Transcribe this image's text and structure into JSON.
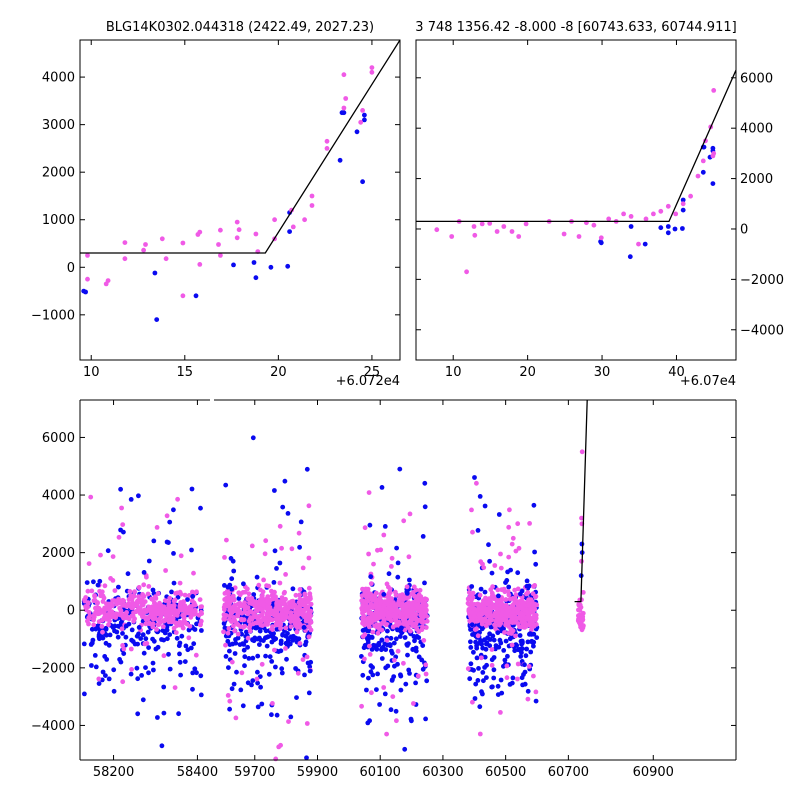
{
  "chart_data": [
    {
      "type": "scatter",
      "title": "BLG14K0302.044318 (2422.49, 2027.23)",
      "x_offset_label": "+6.072e4",
      "xlim": [
        9.4,
        26.5
      ],
      "ylim": [
        -1950,
        4780
      ],
      "xticks": [
        10,
        15,
        20,
        25
      ],
      "yticks": [
        -1000,
        0,
        1000,
        2000,
        3000,
        4000
      ],
      "y_axis_side": "left",
      "colors": {
        "series_a": "#0a0af0",
        "series_b": "#f05ae6",
        "model": "#000000"
      },
      "model_line": [
        [
          9.4,
          300
        ],
        [
          19.3,
          300
        ],
        [
          26.5,
          4780
        ]
      ],
      "series": [
        {
          "key": "series_a",
          "points": [
            [
              9.6,
              -500
            ],
            [
              9.7,
              -520
            ],
            [
              13.5,
              -1100
            ],
            [
              13.4,
              -120
            ],
            [
              15.6,
              -600
            ],
            [
              17.6,
              50
            ],
            [
              18.7,
              100
            ],
            [
              18.8,
              -220
            ],
            [
              19.6,
              0
            ],
            [
              20.5,
              20
            ],
            [
              20.6,
              1150
            ],
            [
              20.6,
              750
            ],
            [
              23.3,
              2250
            ],
            [
              23.4,
              3250
            ],
            [
              23.5,
              3250
            ],
            [
              24.2,
              2850
            ],
            [
              24.5,
              1800
            ],
            [
              24.6,
              3100
            ],
            [
              24.6,
              3200
            ]
          ]
        },
        {
          "key": "series_b",
          "points": [
            [
              9.8,
              250
            ],
            [
              9.8,
              -250
            ],
            [
              10.8,
              -350
            ],
            [
              10.9,
              -280
            ],
            [
              11.8,
              520
            ],
            [
              11.8,
              180
            ],
            [
              12.8,
              360
            ],
            [
              12.9,
              480
            ],
            [
              13.8,
              600
            ],
            [
              14.0,
              180
            ],
            [
              14.9,
              -600
            ],
            [
              14.9,
              510
            ],
            [
              15.7,
              690
            ],
            [
              15.8,
              740
            ],
            [
              15.8,
              60
            ],
            [
              16.8,
              480
            ],
            [
              16.9,
              250
            ],
            [
              16.9,
              780
            ],
            [
              17.8,
              950
            ],
            [
              17.8,
              620
            ],
            [
              17.9,
              790
            ],
            [
              18.8,
              700
            ],
            [
              18.9,
              330
            ],
            [
              19.8,
              600
            ],
            [
              19.8,
              1000
            ],
            [
              20.7,
              1200
            ],
            [
              20.8,
              850
            ],
            [
              21.4,
              1000
            ],
            [
              21.8,
              1300
            ],
            [
              21.8,
              1500
            ],
            [
              22.6,
              2500
            ],
            [
              22.6,
              2650
            ],
            [
              23.5,
              3350
            ],
            [
              23.5,
              4050
            ],
            [
              23.6,
              3550
            ],
            [
              24.4,
              3050
            ],
            [
              24.5,
              3300
            ],
            [
              25.0,
              4100
            ],
            [
              25.0,
              4200
            ]
          ]
        }
      ]
    },
    {
      "type": "scatter",
      "title": "3 748 1356.42 -8.000 -8 [60743.633, 60744.911]",
      "x_offset_label": "+6.07e4",
      "xlim": [
        5,
        48
      ],
      "ylim": [
        -5200,
        7500
      ],
      "xticks": [
        10,
        20,
        30,
        40
      ],
      "yticks": [
        -4000,
        -2000,
        0,
        2000,
        4000,
        6000
      ],
      "y_axis_side": "right",
      "model_line": [
        [
          5,
          300
        ],
        [
          39,
          300
        ],
        [
          48,
          6300
        ]
      ],
      "series": [
        {
          "key": "series_a",
          "points": [
            [
              29.8,
              -500
            ],
            [
              29.9,
              -550
            ],
            [
              33.8,
              -1100
            ],
            [
              33.9,
              100
            ],
            [
              35.8,
              -600
            ],
            [
              37.9,
              50
            ],
            [
              38.9,
              100
            ],
            [
              38.9,
              -150
            ],
            [
              39.8,
              0
            ],
            [
              40.8,
              20
            ],
            [
              40.9,
              750
            ],
            [
              40.9,
              1150
            ],
            [
              43.6,
              2250
            ],
            [
              43.6,
              3250
            ],
            [
              43.7,
              3250
            ],
            [
              44.5,
              2850
            ],
            [
              44.9,
              1800
            ],
            [
              44.9,
              3100
            ],
            [
              44.9,
              3200
            ]
          ]
        },
        {
          "key": "series_b",
          "points": [
            [
              7.8,
              -30
            ],
            [
              9.8,
              -300
            ],
            [
              10.8,
              300
            ],
            [
              11.8,
              -1700
            ],
            [
              12.8,
              100
            ],
            [
              12.9,
              -250
            ],
            [
              13.9,
              200
            ],
            [
              14.9,
              220
            ],
            [
              15.9,
              -100
            ],
            [
              16.8,
              100
            ],
            [
              17.9,
              -100
            ],
            [
              18.8,
              -300
            ],
            [
              19.8,
              200
            ],
            [
              22.9,
              300
            ],
            [
              24.9,
              -200
            ],
            [
              25.9,
              300
            ],
            [
              26.9,
              -300
            ],
            [
              27.9,
              250
            ],
            [
              28.9,
              150
            ],
            [
              29.9,
              -350
            ],
            [
              30.9,
              400
            ],
            [
              31.9,
              300
            ],
            [
              32.9,
              600
            ],
            [
              33.9,
              500
            ],
            [
              34.9,
              -600
            ],
            [
              35.9,
              400
            ],
            [
              36.9,
              600
            ],
            [
              37.9,
              700
            ],
            [
              38.9,
              900
            ],
            [
              39.9,
              600
            ],
            [
              40.9,
              1000
            ],
            [
              41.9,
              1300
            ],
            [
              42.9,
              2100
            ],
            [
              43.6,
              2700
            ],
            [
              43.9,
              3500
            ],
            [
              44.6,
              4050
            ],
            [
              44.9,
              2900
            ],
            [
              45.0,
              3000
            ],
            [
              45.0,
              5500
            ]
          ]
        }
      ]
    },
    {
      "type": "scatter",
      "title": "",
      "broken_x_axis": true,
      "ylim": [
        -5200,
        7300
      ],
      "yticks": [
        -4000,
        -2000,
        0,
        2000,
        4000,
        6000
      ],
      "y_axis_side": "left",
      "segments": [
        {
          "xlim": [
            58120,
            58430
          ],
          "xticks": [
            58200,
            58400
          ],
          "band": [
            58130,
            58410
          ]
        },
        {
          "xlim": [
            59570,
            60820
          ],
          "xticks": [
            59700,
            59900,
            60100,
            60300,
            60500,
            60700
          ],
          "bands": [
            [
              59600,
              59880
            ],
            [
              60040,
              60250
            ],
            [
              60380,
              60600
            ]
          ]
        },
        {
          "xlim": [
            60820,
            61040
          ],
          "xticks": [
            60900
          ]
        }
      ],
      "model_line": [
        [
          60720,
          300
        ],
        [
          60740,
          300
        ],
        [
          60760,
          7300
        ]
      ],
      "random_seed": 7
    }
  ]
}
